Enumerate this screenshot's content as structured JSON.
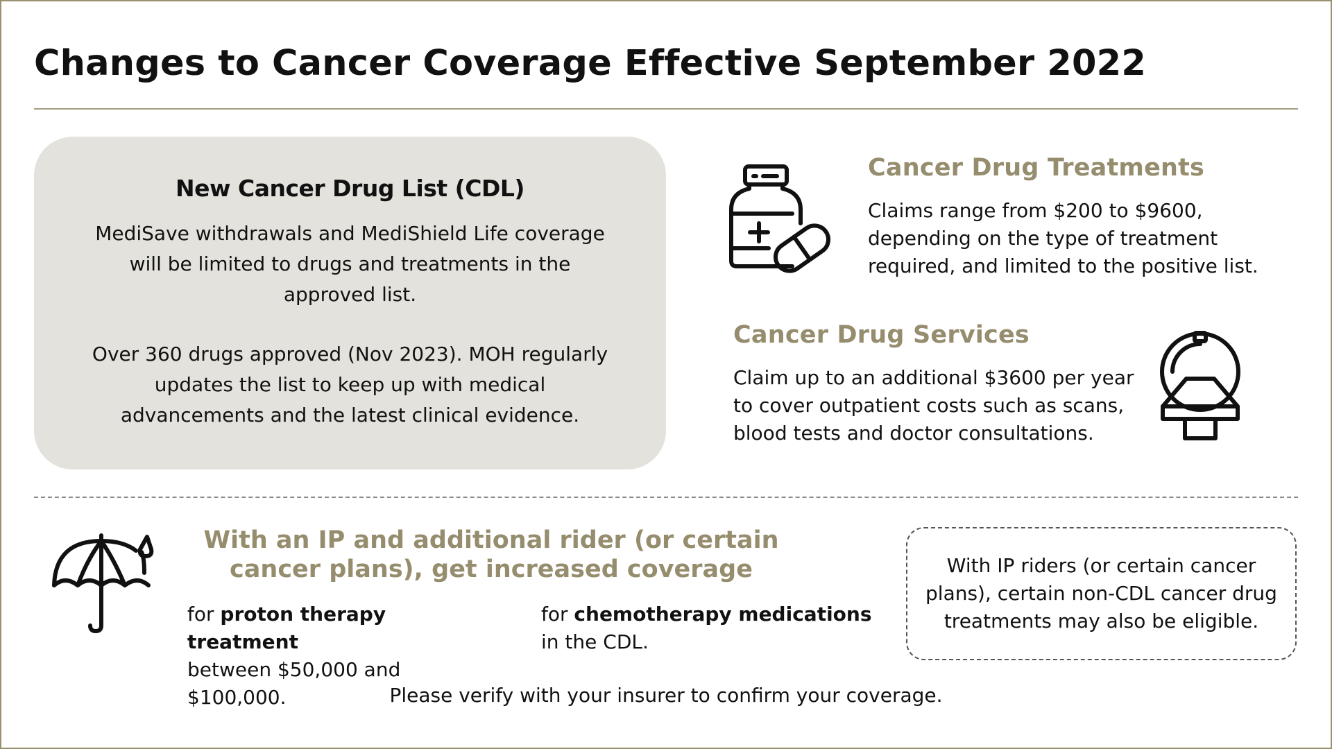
{
  "title": "Changes to Cancer Coverage Effective September 2022",
  "colors": {
    "accent": "#958d6d",
    "card_bg": "#e3e2dc",
    "rule": "#a39c80"
  },
  "cdl": {
    "heading": "New Cancer Drug List (CDL)",
    "paragraph1": "MediSave withdrawals and MediShield Life coverage will be limited to drugs and treatments in the approved list.",
    "paragraph2": "Over 360 drugs approved (Nov 2023). MOH regularly updates the list to keep up with medical advancements and the latest clinical evidence."
  },
  "drug_treatments": {
    "icon": "medicine-bottle-and-pill-icon",
    "title": "Cancer Drug Treatments",
    "body": "Claims range from $200 to $9600, depending on the type of treatment required, and limited to the positive list."
  },
  "drug_services": {
    "icon": "ct-scanner-icon",
    "title": "Cancer Drug Services",
    "body": "Claim up to an additional $3600 per year to cover outpatient costs such as scans, blood tests and doctor consultations."
  },
  "ip_section": {
    "icon": "umbrella-icon",
    "title": "With an IP and additional rider (or certain cancer plans), get increased coverage",
    "proton": {
      "prefix": "for ",
      "bold": "proton therapy treatment",
      "rest": "between $50,000 and $100,000."
    },
    "chemo": {
      "prefix": "for ",
      "bold": "chemotherapy medications",
      "rest": "in the CDL."
    },
    "note": "With IP riders (or certain cancer plans), certain non-CDL cancer drug treatments may also be eligible."
  },
  "footer": "Please verify with your insurer to confirm your coverage."
}
